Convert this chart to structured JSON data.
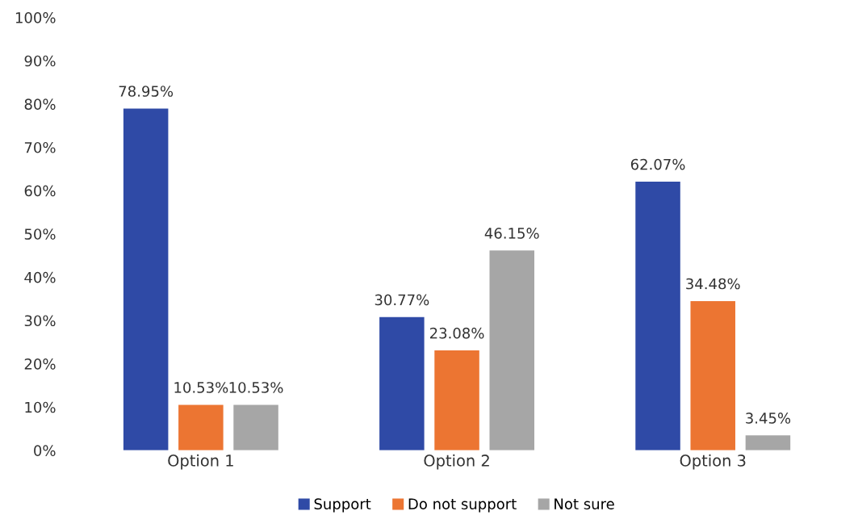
{
  "chart_data": {
    "type": "bar",
    "categories": [
      "Option 1",
      "Option 2",
      "Option 3"
    ],
    "series": [
      {
        "name": "Support",
        "color": "#2f4aa6",
        "values": [
          78.95,
          30.77,
          62.07
        ],
        "value_labels": [
          "78.95%",
          "30.77%",
          "62.07%"
        ]
      },
      {
        "name": "Do not support",
        "color": "#ec7532",
        "values": [
          10.53,
          23.08,
          34.48
        ],
        "value_labels": [
          "10.53%",
          "23.08%",
          "34.48%"
        ]
      },
      {
        "name": "Not sure",
        "color": "#a6a6a6",
        "values": [
          10.53,
          46.15,
          3.45
        ],
        "value_labels": [
          "10.53%",
          "46.15%",
          "3.45%"
        ]
      }
    ],
    "ylim": [
      0,
      100
    ],
    "yticks": [
      {
        "value": 0,
        "label": "0%"
      },
      {
        "value": 10,
        "label": "10%"
      },
      {
        "value": 20,
        "label": "20%"
      },
      {
        "value": 30,
        "label": "30%"
      },
      {
        "value": 40,
        "label": "40%"
      },
      {
        "value": 50,
        "label": "50%"
      },
      {
        "value": 60,
        "label": "60%"
      },
      {
        "value": 70,
        "label": "70%"
      },
      {
        "value": 80,
        "label": "80%"
      },
      {
        "value": 90,
        "label": "90%"
      },
      {
        "value": 100,
        "label": "100%"
      }
    ],
    "grid": false,
    "legend": "bottom"
  }
}
